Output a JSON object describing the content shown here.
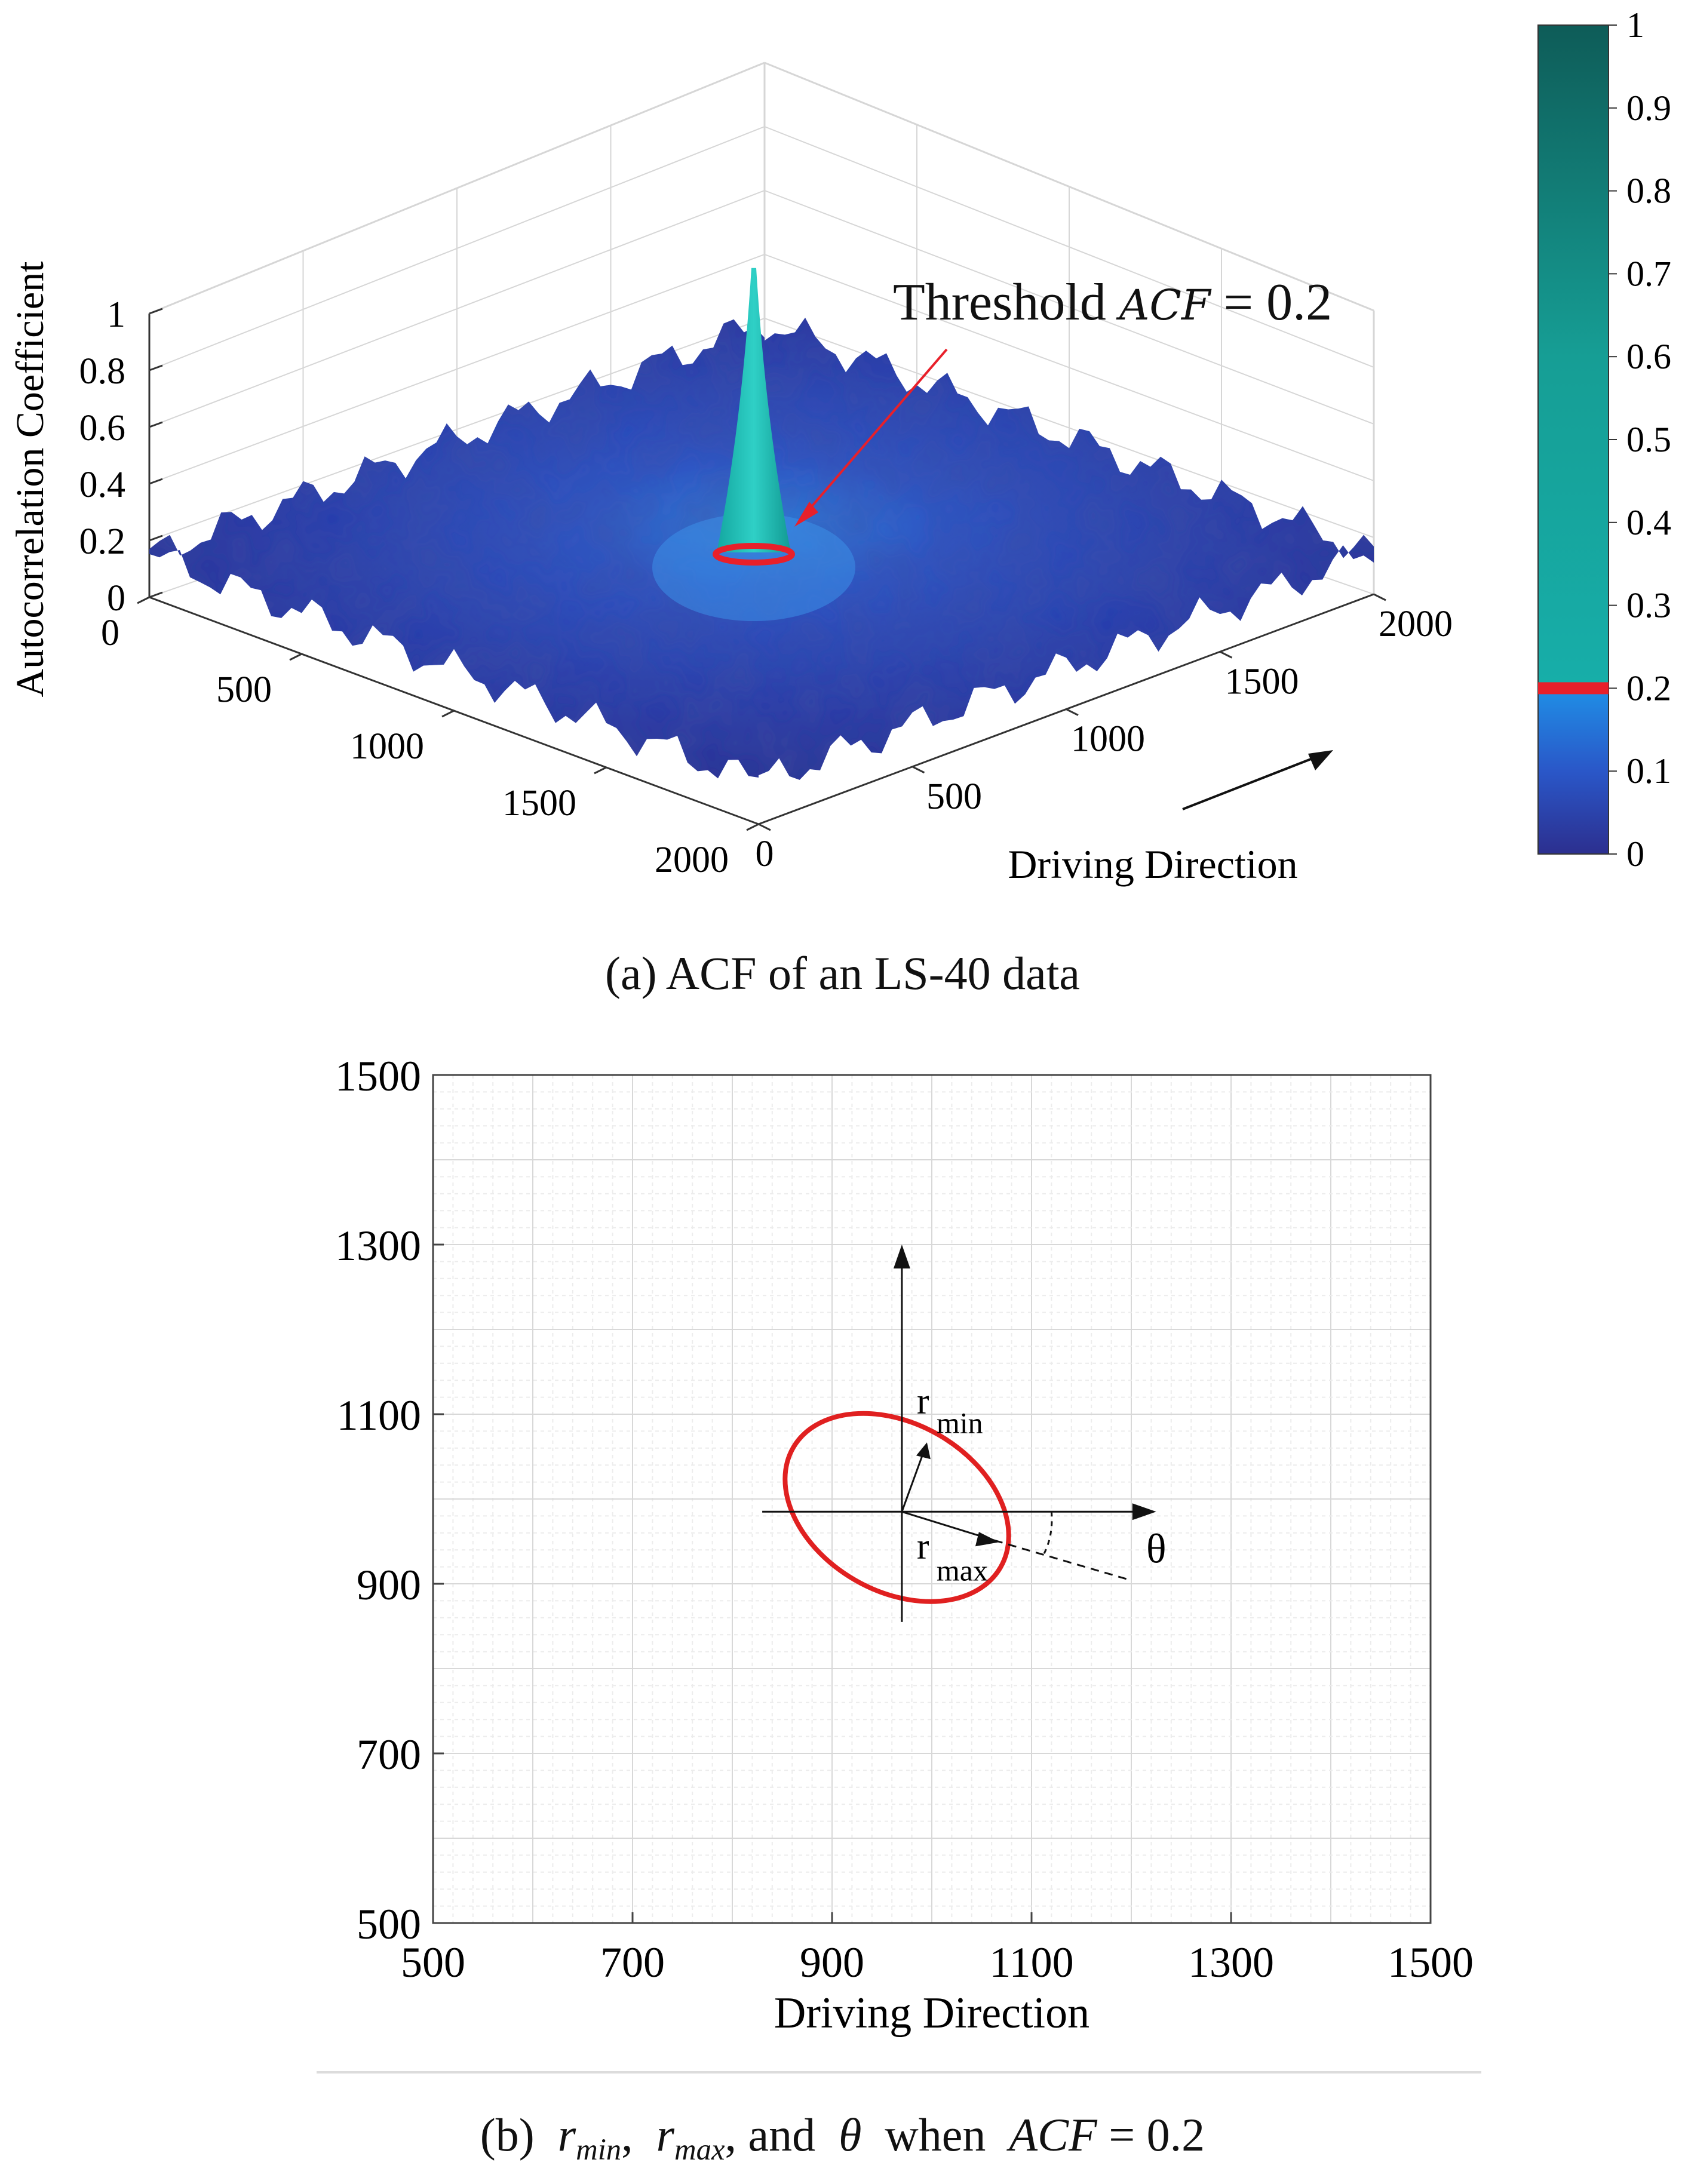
{
  "chart_data": [
    {
      "type": "surface3d",
      "xlabel": "",
      "ylabel": "Driving Direction",
      "zlabel": "Autocorrelation Coefficient",
      "x_ticks": [
        "0",
        "500",
        "1000",
        "1500",
        "2000"
      ],
      "y_ticks": [
        "0",
        "500",
        "1000",
        "1500",
        "2000"
      ],
      "z_ticks": [
        "0",
        "0.2",
        "0.4",
        "0.6",
        "0.8",
        "1"
      ],
      "xlim": [
        0,
        2000
      ],
      "ylim": [
        0,
        2000
      ],
      "zlim": [
        0,
        1
      ],
      "peak": {
        "x": 1000,
        "y": 1000,
        "z": 1.0
      },
      "threshold_level": 0.2,
      "annotation": {
        "text": "Threshold",
        "math": "ACF",
        "eq": "= 0.2"
      },
      "colorbar": {
        "ticks": [
          "0",
          "0.1",
          "0.2",
          "0.3",
          "0.4",
          "0.5",
          "0.6",
          "0.7",
          "0.8",
          "0.9",
          "1"
        ],
        "range": [
          0,
          1
        ],
        "threshold": 0.2,
        "colors": {
          "low": "#2a3a9e",
          "mid": "#1f8fe6",
          "high": "#16b3ad",
          "top": "#0e5e5a"
        }
      },
      "caption": "(a) ACF of an LS-40 data"
    },
    {
      "type": "contour",
      "xlabel": "Driving Direction",
      "ylabel": "",
      "x_ticks": [
        500,
        700,
        900,
        1100,
        1300,
        1500
      ],
      "y_ticks": [
        500,
        700,
        900,
        1100,
        1300,
        1500
      ],
      "xlim": [
        500,
        1500
      ],
      "ylim": [
        500,
        1500
      ],
      "grid": true,
      "ellipse": {
        "cx": 965,
        "cy": 990,
        "r_max": 120,
        "r_min": 80,
        "theta_deg": -20,
        "color": "#e02020"
      },
      "axes_origin": {
        "x": 970,
        "y": 985
      },
      "arrow_x_end": 1225,
      "arrow_y_end": 1300,
      "labels": {
        "r_min": "r",
        "r_min_sub": "min",
        "r_max": "r",
        "r_max_sub": "max",
        "theta": "θ"
      },
      "caption": {
        "prefix": "(b)",
        "r": "r",
        "min": "min",
        "max": "max",
        "and": ", and",
        "theta": "θ",
        "when": "when",
        "acf": "ACF",
        "eq": "= 0.2",
        "comma": ","
      }
    }
  ]
}
